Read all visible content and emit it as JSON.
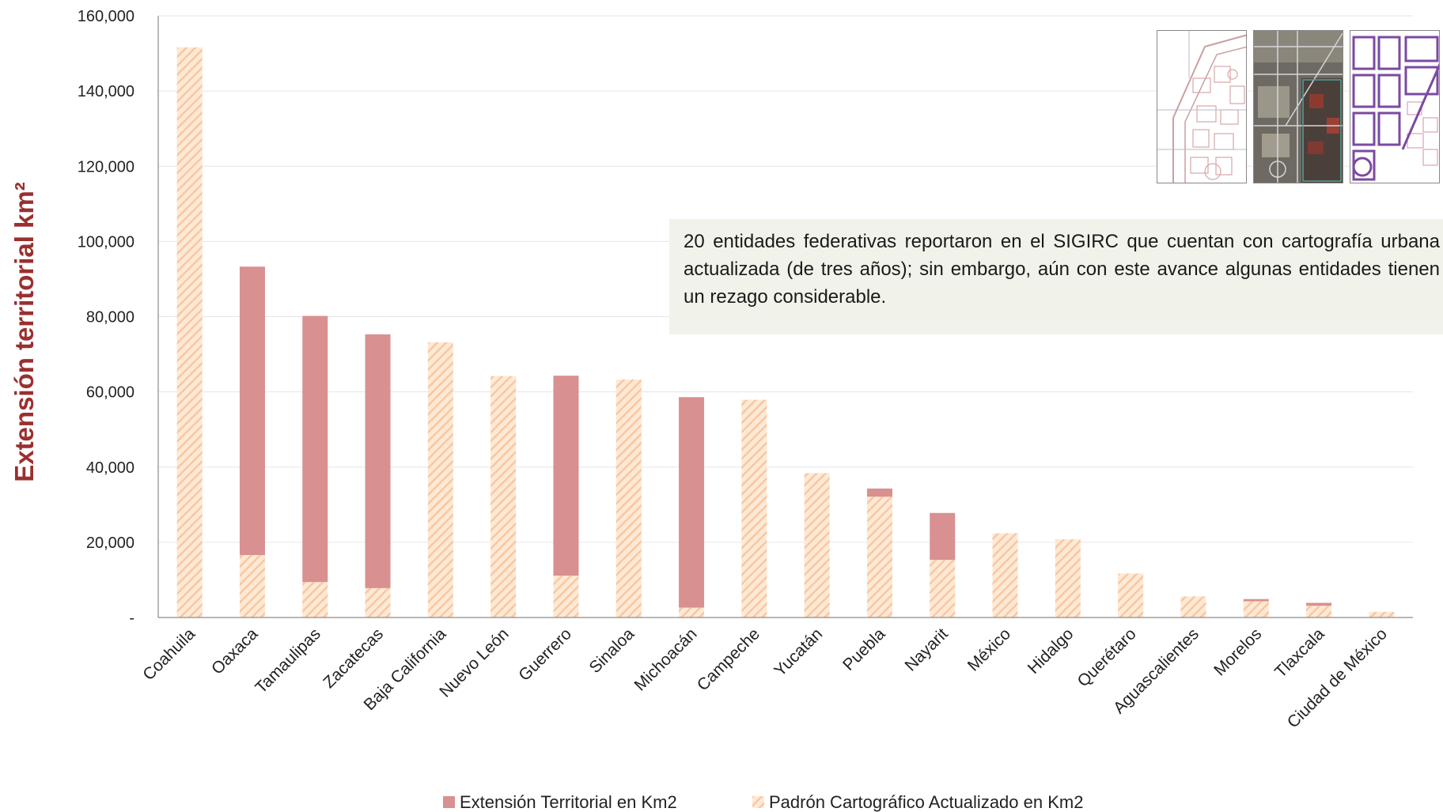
{
  "colors": {
    "extension": "#d99090",
    "padron_hatch": "#f9c7a0",
    "padron_bg": "#fde9d6",
    "axis_title": "#9b2f2f",
    "note_background": "#f1f3ea"
  },
  "note": {
    "text": "20 entidades federativas reportaron en el SIGIRC que cuentan con cartografía urbana actualizada (de tres años); sin embargo, aún con este avance algunas entidades tienen un rezago considerable."
  },
  "thumbnails": [
    {
      "name": "vector-map-thumbnail",
      "icon": "street-map-line-drawing"
    },
    {
      "name": "satellite-map-thumbnail",
      "icon": "satellite-imagery-with-overlay"
    },
    {
      "name": "purple-map-thumbnail",
      "icon": "street-map-purple-blocks"
    }
  ],
  "chart_data": {
    "type": "bar",
    "stacked": "overlay",
    "ylabel": "Extensión territorial km²",
    "xlabel": "",
    "ylim": [
      0,
      160000
    ],
    "yticks": [
      0,
      20000,
      40000,
      60000,
      80000,
      100000,
      120000,
      140000,
      160000
    ],
    "ytick_labels": [
      "-",
      "20,000",
      "40,000",
      "60,000",
      "80,000",
      "100,000",
      "120,000",
      "140,000",
      "160,000"
    ],
    "grid": true,
    "legend_position": "bottom",
    "categories": [
      "Coahuila",
      "Oaxaca",
      "Tamaulipas",
      "Zacatecas",
      "Baja California",
      "Nuevo León",
      "Guerrero",
      "Sinaloa",
      "Michoacán",
      "Campeche",
      "Yucatán",
      "Puebla",
      "Nayarit",
      "México",
      "Hidalgo",
      "Querétaro",
      "Aguascalientes",
      "Morelos",
      "Tlaxcala",
      "Ciudad de México"
    ],
    "series": [
      {
        "name": "Extensión Territorial en Km2",
        "values": [
          151600,
          93300,
          80200,
          75300,
          73200,
          64200,
          64300,
          63300,
          58600,
          57900,
          38400,
          34300,
          27800,
          22400,
          20800,
          11700,
          5600,
          4900,
          3900,
          1500
        ]
      },
      {
        "name": "Padrón Cartográfico Actualizado en Km2",
        "values": [
          151600,
          16600,
          9400,
          7800,
          73200,
          64200,
          11100,
          63300,
          2600,
          57900,
          38400,
          32100,
          15300,
          22400,
          20800,
          11700,
          5600,
          4300,
          3100,
          1500
        ]
      }
    ]
  }
}
